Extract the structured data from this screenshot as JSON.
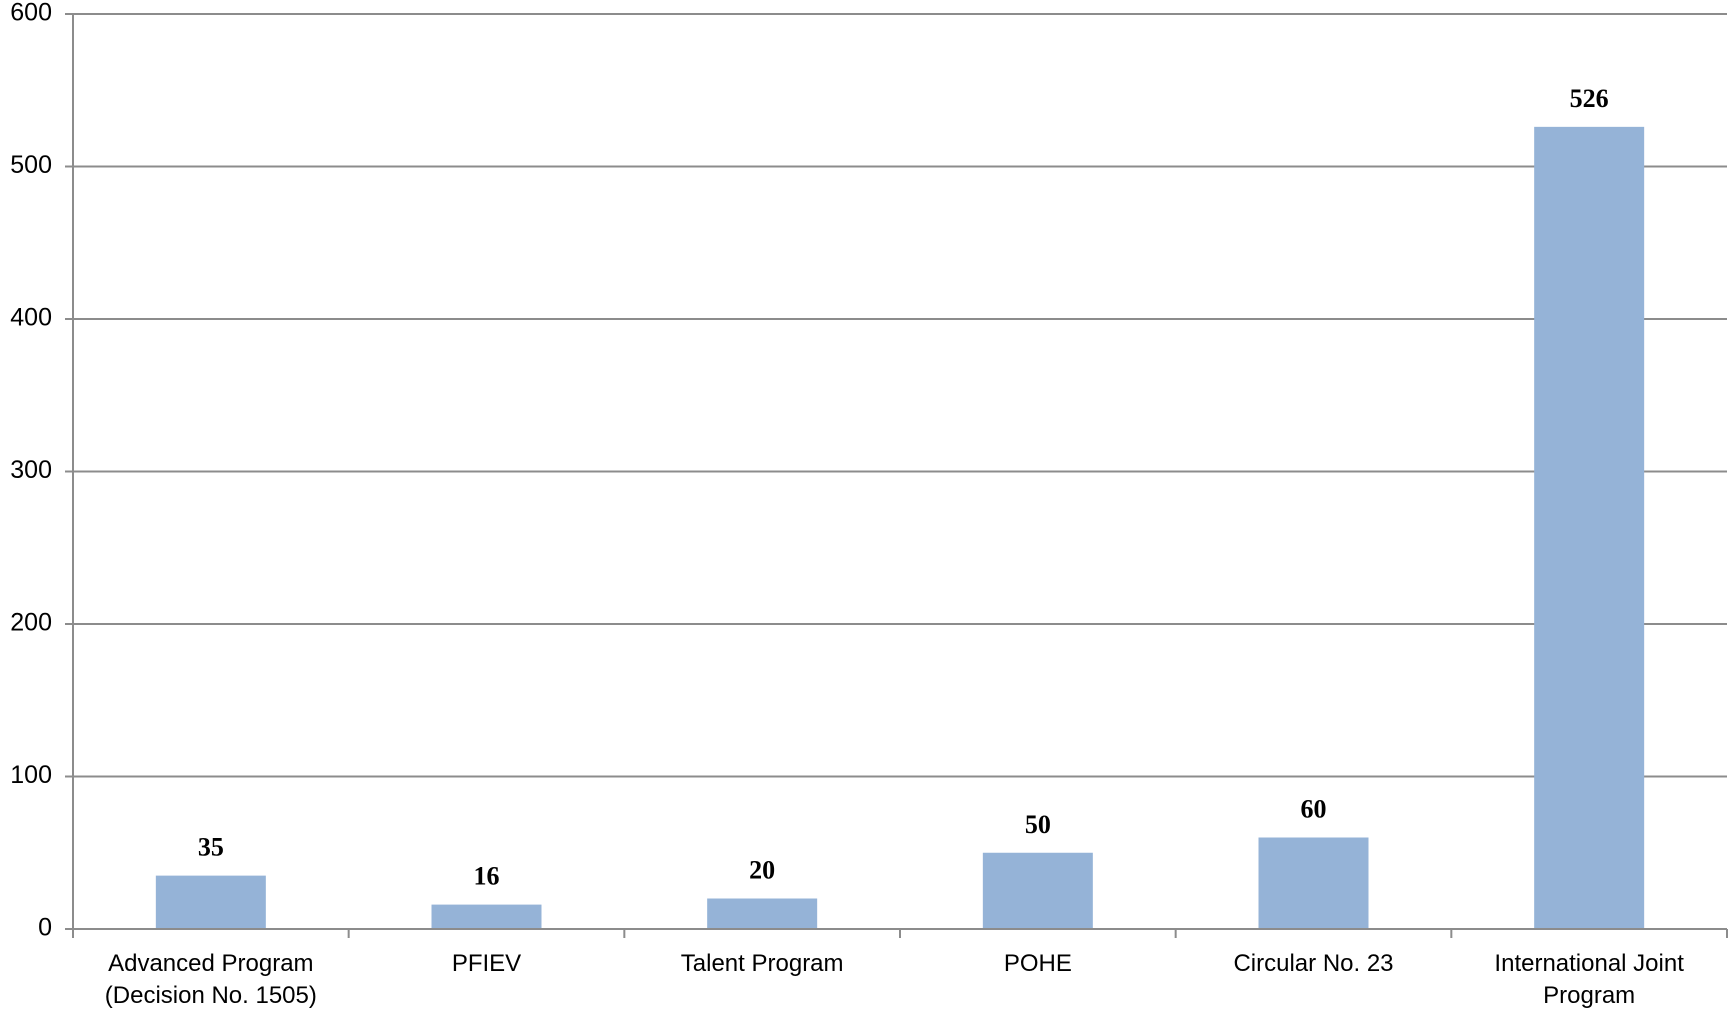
{
  "chart_data": {
    "type": "bar",
    "title": "",
    "xlabel": "",
    "ylabel": "",
    "categories": [
      [
        "Advanced Program",
        "(Decision No. 1505)"
      ],
      [
        "PFIEV"
      ],
      [
        "Talent Program"
      ],
      [
        "POHE"
      ],
      [
        "Circular No. 23"
      ],
      [
        "International Joint",
        "Program"
      ]
    ],
    "values": [
      35,
      16,
      20,
      50,
      60,
      526
    ],
    "data_labels": [
      "35",
      "16",
      "20",
      "50",
      "60",
      "526"
    ],
    "ylim": [
      0,
      600
    ],
    "yticks": [
      0,
      100,
      200,
      300,
      400,
      500,
      600
    ],
    "ytick_labels": [
      "0",
      "100",
      "200",
      "300",
      "400",
      "500",
      "600"
    ],
    "grid": true,
    "legend": "none",
    "colors": {
      "bar": "#95B3D7",
      "grid": "#8C8C8C",
      "axis": "#8C8C8C",
      "text": "#000000"
    }
  }
}
